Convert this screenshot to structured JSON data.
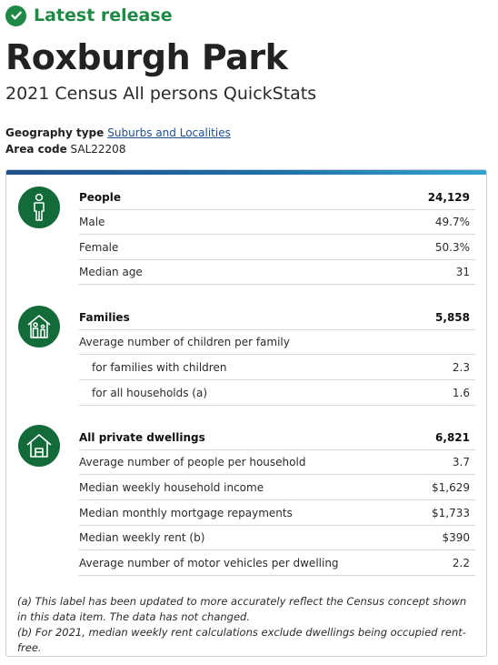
{
  "release": {
    "label": "Latest release",
    "icon": "check-circle-icon",
    "color": "#1e8a45"
  },
  "title": "Roxburgh Park",
  "subtitle": "2021 Census All persons QuickStats",
  "geography": {
    "label": "Geography type",
    "value": "Suburbs and Localities"
  },
  "area_code": {
    "label": "Area code",
    "value": "SAL22208"
  },
  "sections": [
    {
      "icon": "person-icon",
      "rows": [
        {
          "label": "People",
          "value": "24,129"
        },
        {
          "label": "Male",
          "value": "49.7%"
        },
        {
          "label": "Female",
          "value": "50.3%"
        },
        {
          "label": "Median age",
          "value": "31"
        }
      ]
    },
    {
      "icon": "family-house-icon",
      "rows": [
        {
          "label": "Families",
          "value": "5,858"
        },
        {
          "label": "Average number of children per family",
          "value": ""
        },
        {
          "label": "for families with children",
          "value": "2.3"
        },
        {
          "label": "for all households (a)",
          "value": "1.6"
        }
      ]
    },
    {
      "icon": "house-icon",
      "rows": [
        {
          "label": "All private dwellings",
          "value": "6,821"
        },
        {
          "label": "Average number of people per household",
          "value": "3.7"
        },
        {
          "label": "Median weekly household income",
          "value": "$1,629"
        },
        {
          "label": "Median monthly mortgage repayments",
          "value": "$1,733"
        },
        {
          "label": "Median weekly rent (b)",
          "value": "$390"
        },
        {
          "label": "Average number of motor vehicles per dwelling",
          "value": "2.2"
        }
      ]
    }
  ],
  "footnotes": {
    "a": "(a) This label has been updated to more accurately reflect the Census concept shown in this data item. The data has not changed.",
    "b": "(b) For 2021, median weekly rent calculations exclude dwellings being occupied rent-free."
  },
  "colors": {
    "icon_bg": "#136b3a",
    "link": "#1d4f91"
  }
}
